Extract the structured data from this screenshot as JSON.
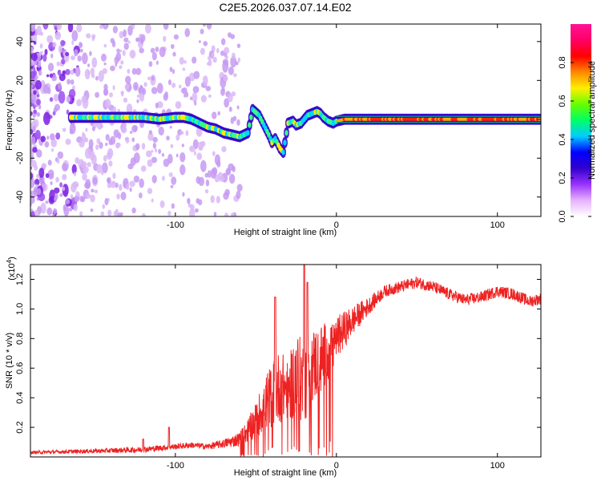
{
  "title": "C2E5.2026.037.07.14.E02",
  "colorbar": {
    "label": "Normalized spectral amplitude",
    "ticks": [
      "0.0",
      "0.2",
      "0.4",
      "0.6",
      "0.8"
    ],
    "tick_values": [
      0.0,
      0.2,
      0.4,
      0.6,
      0.8
    ],
    "range": [
      0,
      1
    ],
    "colors": [
      "#ffffff",
      "#e6b3ff",
      "#9933ff",
      "#3300cc",
      "#0000ff",
      "#00ccff",
      "#00ff66",
      "#66ff00",
      "#ffee00",
      "#ff8800",
      "#ff0000",
      "#ff0066",
      "#ff1493"
    ]
  },
  "chart_data": [
    {
      "type": "heatmap",
      "name": "spectrogram",
      "xlabel": "Height of straight line (km)",
      "ylabel": "Frequency (Hz)",
      "xlim": [
        -190,
        127
      ],
      "ylim": [
        -50,
        49
      ],
      "xticks": [
        -100,
        0,
        100
      ],
      "xtick_labels": [
        "-100",
        "0",
        "100"
      ],
      "yticks": [
        -40,
        -20,
        0,
        20,
        40
      ],
      "ytick_labels": [
        "-40",
        "-20",
        "0",
        "20",
        "40"
      ],
      "ridge": {
        "x": [
          -165,
          -150,
          -140,
          -130,
          -120,
          -110,
          -100,
          -95,
          -90,
          -85,
          -80,
          -75,
          -70,
          -65,
          -60,
          -55,
          -52,
          -48,
          -45,
          -42,
          -40,
          -38,
          -35,
          -33,
          -30,
          -27,
          -25,
          -22,
          -20,
          -18,
          -15,
          -12,
          -10,
          -8,
          -5,
          -2,
          0,
          5,
          10,
          20,
          40,
          60,
          80,
          100,
          127
        ],
        "freq": [
          1,
          1,
          1,
          1,
          1,
          0,
          1,
          1,
          0,
          -2,
          -4,
          -5,
          -7,
          -8,
          -9,
          -7,
          5,
          2,
          -3,
          -8,
          -12,
          -10,
          -15,
          -17,
          -2,
          -1,
          -3,
          -2,
          0,
          2,
          3,
          4,
          3,
          1,
          -1,
          -2,
          -1,
          0,
          0,
          0,
          0,
          0,
          0,
          0,
          0
        ]
      }
    },
    {
      "type": "line",
      "name": "snr",
      "xlabel": "Height of straight line (km)",
      "ylabel": "SNR (10 * v/v)",
      "y_exponent_label": "(x10",
      "y_exponent": "4",
      "y_exponent_suffix": ")",
      "xlim": [
        -190,
        127
      ],
      "ylim": [
        0,
        1.3
      ],
      "xticks": [
        -100,
        0,
        100
      ],
      "xtick_labels": [
        "-100",
        "0",
        "100"
      ],
      "yticks": [
        0.2,
        0.4,
        0.6,
        0.8,
        1.0,
        1.2
      ],
      "ytick_labels": [
        "0.2",
        "0.4",
        "0.6",
        "0.8",
        "1.0",
        "1.2"
      ],
      "color": "#ee2222",
      "envelope": {
        "x": [
          -190,
          -150,
          -120,
          -100,
          -90,
          -80,
          -70,
          -60,
          -55,
          -50,
          -45,
          -40,
          -35,
          -30,
          -25,
          -20,
          -15,
          -10,
          -5,
          0,
          10,
          20,
          30,
          40,
          50,
          60,
          70,
          80,
          90,
          100,
          110,
          120,
          127
        ],
        "y": [
          0.03,
          0.04,
          0.05,
          0.07,
          0.08,
          0.07,
          0.09,
          0.12,
          0.18,
          0.25,
          0.35,
          0.42,
          0.48,
          0.45,
          0.55,
          0.5,
          0.62,
          0.65,
          0.72,
          0.8,
          0.92,
          1.02,
          1.12,
          1.15,
          1.18,
          1.15,
          1.1,
          1.06,
          1.08,
          1.12,
          1.1,
          1.05,
          1.07
        ],
        "noise": [
          0.01,
          0.015,
          0.02,
          0.02,
          0.02,
          0.02,
          0.03,
          0.05,
          0.08,
          0.12,
          0.18,
          0.22,
          0.25,
          0.2,
          0.3,
          0.28,
          0.25,
          0.25,
          0.2,
          0.15,
          0.1,
          0.06,
          0.04,
          0.04,
          0.04,
          0.04,
          0.04,
          0.04,
          0.04,
          0.04,
          0.04,
          0.04,
          0.04
        ]
      },
      "spikes": [
        {
          "x": -120,
          "y": 0.12
        },
        {
          "x": -104,
          "y": 0.2
        },
        {
          "x": -38,
          "y": 1.08
        },
        {
          "x": -20,
          "y": 1.3
        },
        {
          "x": -18,
          "y": 1.18
        }
      ]
    }
  ]
}
